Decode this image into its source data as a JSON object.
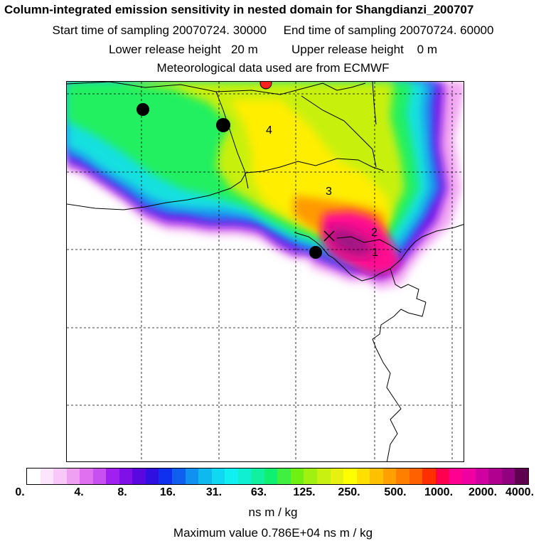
{
  "titles": {
    "line1": "Column-integrated emission sensitivity in nested domain for Shangdianzi_200707",
    "line2": "Start time of sampling 20070724. 30000     End time of sampling 20070724. 60000",
    "line3": "Lower release height   20 m          Upper release height    0 m",
    "line4": "Meteorological data used are from ECMWF"
  },
  "map": {
    "trajectory_labels": [
      "1",
      "2",
      "3",
      "4"
    ],
    "markers": [
      "black-dot",
      "black-dot",
      "black-dot",
      "red-dot",
      "cross"
    ]
  },
  "colorbar": {
    "labels": [
      "0.",
      "4.",
      "8.",
      "16.",
      "31.",
      "63.",
      "125.",
      "250.",
      "500.",
      "1000.",
      "2000.",
      "4000."
    ],
    "colors": [
      "#ffffff",
      "#fde6fd",
      "#f8c8f8",
      "#f0a0f0",
      "#e070f0",
      "#c850f0",
      "#a020f0",
      "#8010e8",
      "#5a08e0",
      "#3010e0",
      "#1030f0",
      "#1060f0",
      "#1090f0",
      "#10b8f0",
      "#10d8f0",
      "#10f0f0",
      "#10f0d0",
      "#10f0a0",
      "#10f070",
      "#40f040",
      "#70f010",
      "#a0f010",
      "#c8f010",
      "#e8f010",
      "#ffff00",
      "#ffe000",
      "#ffc000",
      "#ffa000",
      "#ff8000",
      "#ff6000",
      "#ff3000",
      "#ff0050",
      "#ff0090",
      "#f000a0",
      "#d000a0",
      "#b00090",
      "#900080",
      "#600050"
    ],
    "unit": "ns m / kg",
    "max_value": "Maximum value  0.786E+04 ns m / kg"
  }
}
